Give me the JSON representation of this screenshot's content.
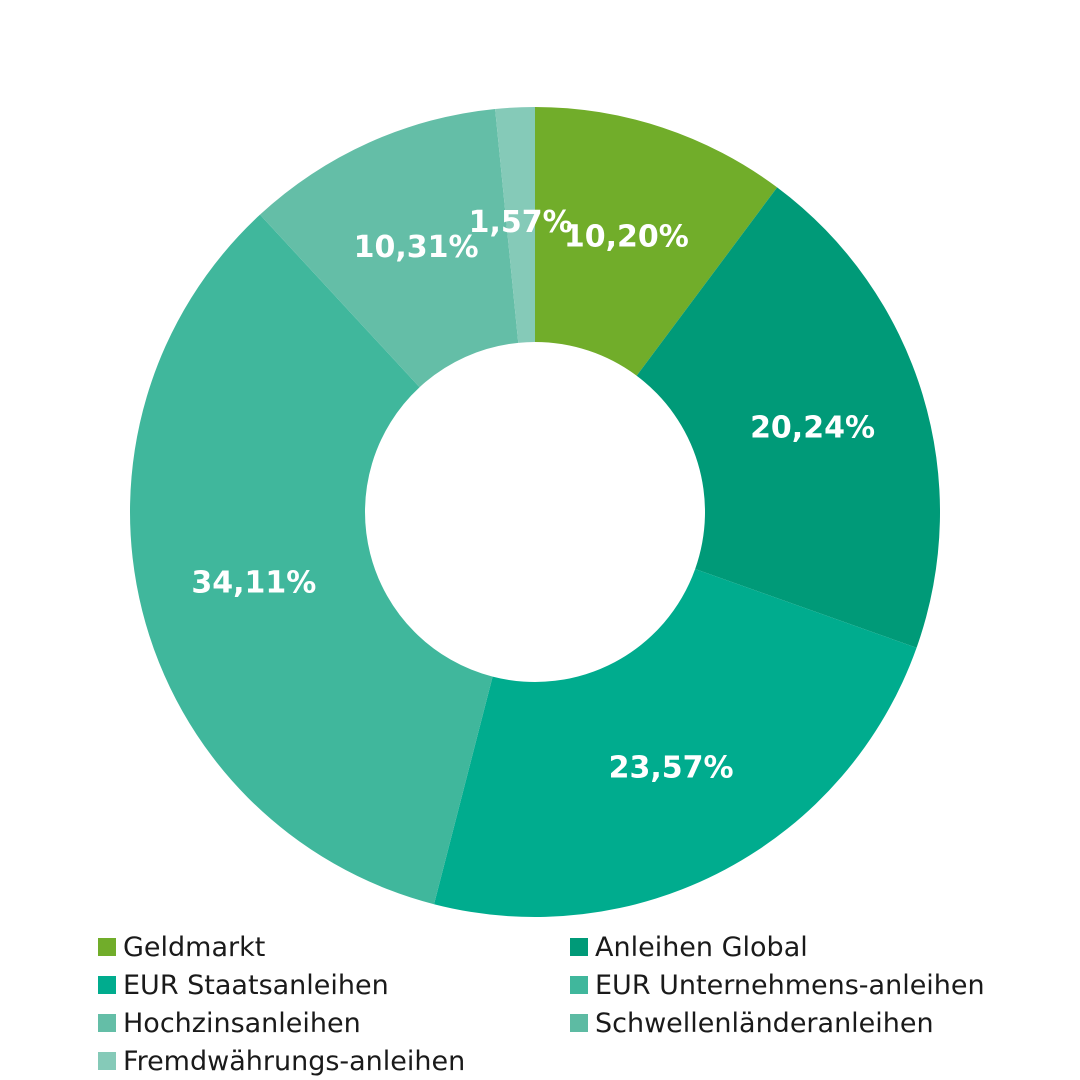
{
  "chart_data": {
    "type": "pie",
    "donut": true,
    "slices": [
      {
        "name": "Geldmarkt",
        "value": 10.2,
        "label": "10,20%",
        "color": "#71ad2a"
      },
      {
        "name": "Anleihen Global",
        "value": 20.24,
        "label": "20,24%",
        "color": "#009a78"
      },
      {
        "name": "EUR Staatsanleihen",
        "value": 23.57,
        "label": "23,57%",
        "color": "#00ac8e"
      },
      {
        "name": "EUR Unternehmens-anleihen",
        "value": 34.11,
        "label": "34,11%",
        "color": "#40b79c"
      },
      {
        "name": "Hochzinsanleihen",
        "value": 10.31,
        "label": "10,31%",
        "color": "#64bea7"
      },
      {
        "name": "Schwellenländeranleihen",
        "value": 0,
        "label": "",
        "color": "#5dbba3"
      },
      {
        "name": "Fremdwährungs-anleihen",
        "value": 1.57,
        "label": "1,57%",
        "color": "#85cab8"
      }
    ],
    "legend_position": "bottom"
  }
}
